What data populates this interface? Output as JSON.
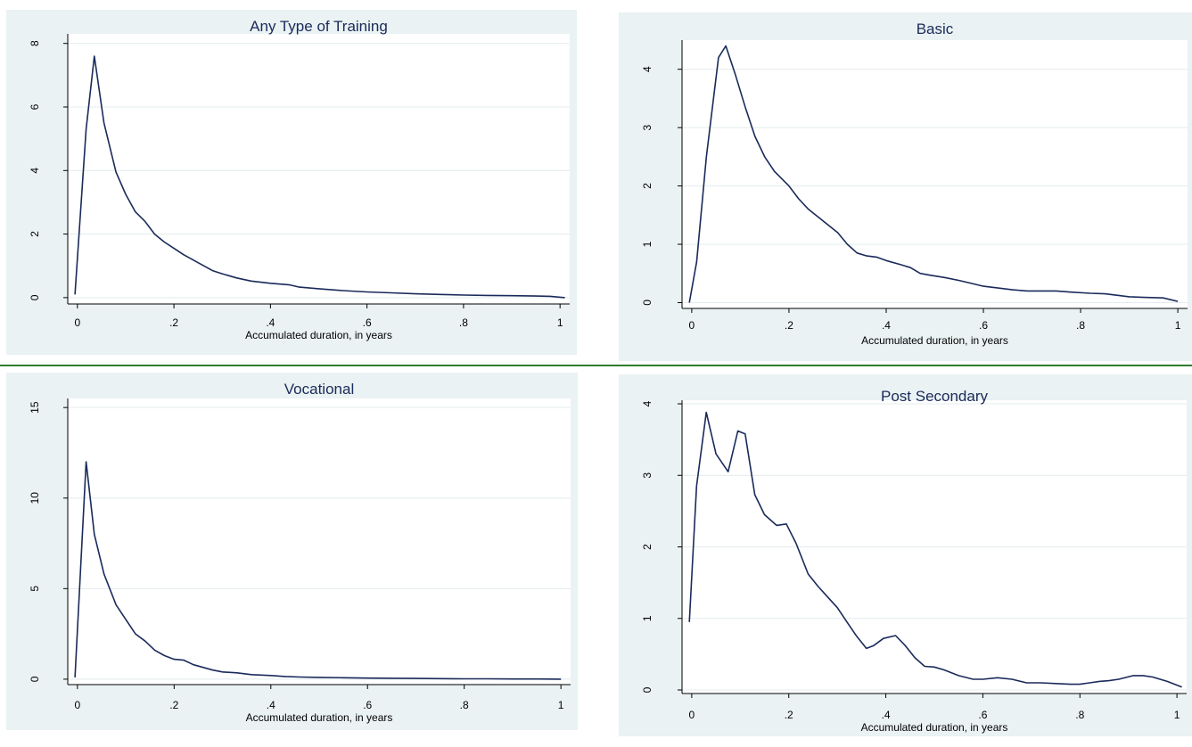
{
  "chart_data": [
    {
      "type": "line",
      "title": "Any Type of Training",
      "xlabel": "Accumulated duration, in years",
      "ylabel": "",
      "xlim": [
        -0.02,
        1.02
      ],
      "ylim": [
        -0.2,
        8.3
      ],
      "xticks": [
        0,
        0.2,
        0.4,
        0.6,
        0.8,
        1
      ],
      "xtick_labels": [
        "0",
        ".2",
        ".4",
        ".6",
        ".8",
        "1"
      ],
      "yticks": [
        0,
        2,
        4,
        6,
        8
      ],
      "ytick_labels": [
        "0",
        "2",
        "4",
        "6",
        "8"
      ],
      "grid": true,
      "series": [
        {
          "x": [
            -0.005,
            0.018,
            0.035,
            0.055,
            0.08,
            0.1,
            0.12,
            0.14,
            0.16,
            0.18,
            0.2,
            0.22,
            0.25,
            0.28,
            0.3,
            0.33,
            0.36,
            0.4,
            0.44,
            0.46,
            0.5,
            0.55,
            0.6,
            0.65,
            0.7,
            0.75,
            0.8,
            0.85,
            0.9,
            0.95,
            0.98,
            1.01
          ],
          "y": [
            0.1,
            5.3,
            7.6,
            5.5,
            3.95,
            3.25,
            2.7,
            2.4,
            2.0,
            1.75,
            1.55,
            1.35,
            1.1,
            0.85,
            0.75,
            0.62,
            0.52,
            0.45,
            0.4,
            0.33,
            0.28,
            0.22,
            0.18,
            0.15,
            0.12,
            0.1,
            0.08,
            0.07,
            0.06,
            0.05,
            0.04,
            0.0
          ]
        }
      ]
    },
    {
      "type": "line",
      "title": "Basic",
      "xlabel": "Accumulated duration, in years",
      "ylabel": "",
      "xlim": [
        -0.02,
        1.02
      ],
      "ylim": [
        -0.1,
        4.5
      ],
      "xticks": [
        0,
        0.2,
        0.4,
        0.6,
        0.8,
        1
      ],
      "xtick_labels": [
        "0",
        ".2",
        ".4",
        ".6",
        ".8",
        "1"
      ],
      "yticks": [
        0,
        1,
        2,
        3,
        4
      ],
      "ytick_labels": [
        "0",
        "1",
        "2",
        "3",
        "4"
      ],
      "grid": true,
      "series": [
        {
          "x": [
            -0.005,
            0.01,
            0.03,
            0.055,
            0.07,
            0.09,
            0.11,
            0.13,
            0.15,
            0.17,
            0.2,
            0.22,
            0.24,
            0.27,
            0.3,
            0.32,
            0.34,
            0.36,
            0.38,
            0.4,
            0.43,
            0.45,
            0.47,
            0.49,
            0.52,
            0.55,
            0.58,
            0.6,
            0.63,
            0.66,
            0.69,
            0.72,
            0.75,
            0.78,
            0.82,
            0.85,
            0.88,
            0.9,
            0.93,
            0.97,
            1.0
          ],
          "y": [
            0.0,
            0.7,
            2.5,
            4.2,
            4.4,
            3.9,
            3.35,
            2.85,
            2.5,
            2.25,
            2.0,
            1.78,
            1.6,
            1.4,
            1.2,
            1.0,
            0.85,
            0.8,
            0.78,
            0.72,
            0.65,
            0.6,
            0.5,
            0.47,
            0.43,
            0.38,
            0.32,
            0.28,
            0.25,
            0.22,
            0.2,
            0.2,
            0.2,
            0.18,
            0.16,
            0.15,
            0.12,
            0.1,
            0.09,
            0.08,
            0.02
          ]
        }
      ]
    },
    {
      "type": "line",
      "title": "Vocational",
      "xlabel": "Accumulated duration, in years",
      "ylabel": "",
      "xlim": [
        -0.02,
        1.02
      ],
      "ylim": [
        -0.3,
        15.5
      ],
      "xticks": [
        0,
        0.2,
        0.4,
        0.6,
        0.8,
        1
      ],
      "xtick_labels": [
        "0",
        ".2",
        ".4",
        ".6",
        ".8",
        "1"
      ],
      "yticks": [
        0,
        5,
        10,
        15
      ],
      "ytick_labels": [
        "0",
        "5",
        "10",
        "15"
      ],
      "grid": true,
      "series": [
        {
          "x": [
            -0.005,
            0.018,
            0.035,
            0.055,
            0.08,
            0.1,
            0.12,
            0.14,
            0.16,
            0.18,
            0.2,
            0.22,
            0.24,
            0.26,
            0.28,
            0.3,
            0.33,
            0.36,
            0.4,
            0.43,
            0.46,
            0.5,
            0.55,
            0.6,
            0.65,
            0.7,
            0.75,
            0.8,
            0.85,
            0.9,
            0.95,
            1.0
          ],
          "y": [
            0.1,
            12.0,
            8.0,
            5.8,
            4.1,
            3.3,
            2.5,
            2.1,
            1.6,
            1.3,
            1.1,
            1.05,
            0.8,
            0.65,
            0.5,
            0.4,
            0.35,
            0.25,
            0.2,
            0.15,
            0.12,
            0.1,
            0.08,
            0.06,
            0.05,
            0.04,
            0.03,
            0.02,
            0.02,
            0.01,
            0.01,
            0.0
          ]
        }
      ]
    },
    {
      "type": "line",
      "title": "Post Secondary",
      "xlabel": "Accumulated duration, in years",
      "ylabel": "",
      "xlim": [
        -0.02,
        1.02
      ],
      "ylim": [
        -0.05,
        4.05
      ],
      "xticks": [
        0,
        0.2,
        0.4,
        0.6,
        0.8,
        1
      ],
      "xtick_labels": [
        "0",
        ".2",
        ".4",
        ".6",
        ".8",
        "1"
      ],
      "yticks": [
        0,
        1,
        2,
        3,
        4
      ],
      "ytick_labels": [
        "0",
        "1",
        "2",
        "3",
        "4"
      ],
      "grid": true,
      "series": [
        {
          "x": [
            -0.005,
            0.01,
            0.03,
            0.05,
            0.075,
            0.095,
            0.11,
            0.13,
            0.15,
            0.175,
            0.195,
            0.215,
            0.24,
            0.26,
            0.28,
            0.3,
            0.32,
            0.34,
            0.36,
            0.375,
            0.395,
            0.42,
            0.44,
            0.46,
            0.48,
            0.5,
            0.52,
            0.55,
            0.58,
            0.6,
            0.63,
            0.66,
            0.69,
            0.72,
            0.75,
            0.78,
            0.8,
            0.82,
            0.84,
            0.86,
            0.88,
            0.91,
            0.93,
            0.95,
            0.98,
            1.01
          ],
          "y": [
            0.95,
            2.85,
            3.88,
            3.3,
            3.05,
            3.62,
            3.58,
            2.73,
            2.45,
            2.3,
            2.32,
            2.05,
            1.62,
            1.45,
            1.3,
            1.15,
            0.95,
            0.75,
            0.58,
            0.62,
            0.72,
            0.76,
            0.62,
            0.45,
            0.33,
            0.32,
            0.28,
            0.2,
            0.15,
            0.15,
            0.17,
            0.15,
            0.1,
            0.1,
            0.09,
            0.08,
            0.08,
            0.1,
            0.12,
            0.13,
            0.15,
            0.2,
            0.2,
            0.18,
            0.12,
            0.04
          ]
        }
      ]
    }
  ]
}
